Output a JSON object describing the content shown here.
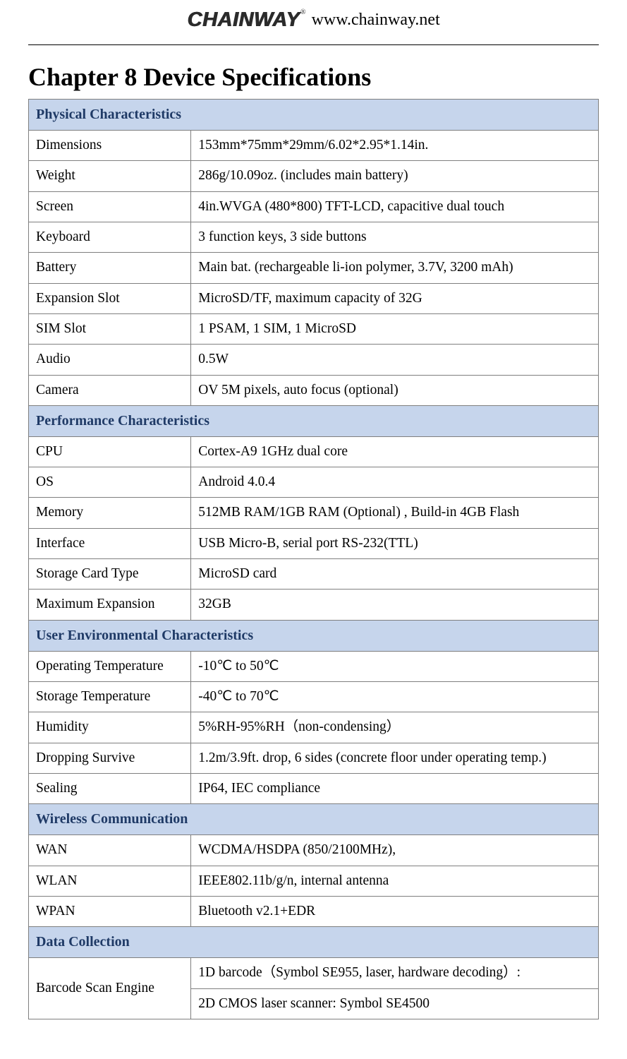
{
  "header": {
    "logo_text": "CHAINWAY",
    "logo_tm": "®",
    "site_url": "www.chainway.net"
  },
  "chapter_title": "Chapter 8 Device Specifications",
  "table": {
    "section_header_bg": "#c6d5ec",
    "section_header_color": "#1f3a66",
    "border_color": "#7f7f7f",
    "col_label_width_pct": 28.5,
    "col_value_width_pct": 71.5,
    "body_fontsize_pt": 15,
    "header_fontsize_pt": 15
  },
  "sections": [
    {
      "title": "Physical Characteristics",
      "rows": [
        {
          "label": "Dimensions",
          "value": "153mm*75mm*29mm/6.02*2.95*1.14in."
        },
        {
          "label": "Weight",
          "value": "286g/10.09oz. (includes main battery)"
        },
        {
          "label": "Screen",
          "value": "4in.WVGA (480*800) TFT-LCD, capacitive dual touch"
        },
        {
          "label": "Keyboard",
          "value": "3 function keys, 3 side buttons"
        },
        {
          "label": "Battery",
          "value": "Main bat. (rechargeable li-ion polymer, 3.7V, 3200 mAh)"
        },
        {
          "label": "Expansion Slot",
          "value": "MicroSD/TF, maximum capacity of 32G"
        },
        {
          "label": "SIM Slot",
          "value": "1 PSAM, 1 SIM, 1 MicroSD"
        },
        {
          "label": "Audio",
          "value": "0.5W"
        },
        {
          "label": "Camera",
          "value": "OV 5M pixels, auto focus (optional)"
        }
      ]
    },
    {
      "title": "Performance Characteristics",
      "rows": [
        {
          "label": "CPU",
          "value": "Cortex-A9 1GHz dual core"
        },
        {
          "label": "OS",
          "value": "Android 4.0.4"
        },
        {
          "label": "Memory",
          "value": "512MB RAM/1GB RAM (Optional) , Build-in 4GB Flash"
        },
        {
          "label": "Interface",
          "value": "USB Micro-B, serial port RS-232(TTL)"
        },
        {
          "label": "Storage Card Type",
          "value": "MicroSD card"
        },
        {
          "label": "Maximum Expansion",
          "value": "32GB"
        }
      ]
    },
    {
      "title": "User Environmental Characteristics",
      "rows": [
        {
          "label": "Operating Temperature",
          "value": "-10℃ to 50℃"
        },
        {
          "label": "Storage Temperature",
          "value": "-40℃ to 70℃"
        },
        {
          "label": "Humidity",
          "value": "5%RH-95%RH（non-condensing）"
        },
        {
          "label": "Dropping Survive",
          "value": "1.2m/3.9ft. drop, 6 sides (concrete floor under operating temp.)"
        },
        {
          "label": "Sealing",
          "value": "IP64, IEC compliance"
        }
      ]
    },
    {
      "title": "Wireless Communication",
      "rows": [
        {
          "label": "WAN",
          "value": "WCDMA/HSDPA (850/2100MHz),"
        },
        {
          "label": "WLAN",
          "value": "IEEE802.11b/g/n, internal antenna"
        },
        {
          "label": "WPAN",
          "value": "Bluetooth v2.1+EDR"
        }
      ]
    },
    {
      "title": "Data Collection",
      "rows": [
        {
          "label": "Barcode Scan Engine",
          "rowspan": 2,
          "label_align": "center",
          "value": "1D barcode（Symbol SE955, laser, hardware decoding）:"
        },
        {
          "value": "2D CMOS laser scanner: Symbol SE4500"
        }
      ]
    }
  ]
}
